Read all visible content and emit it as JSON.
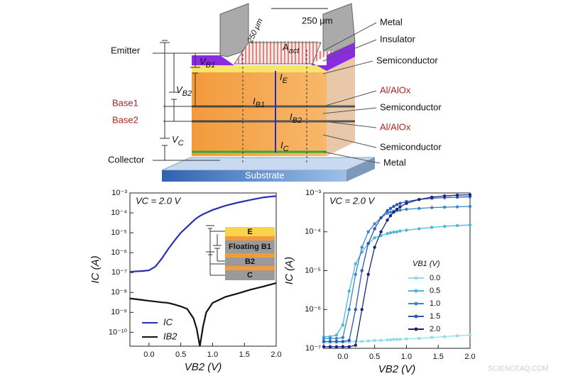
{
  "diagram": {
    "dimensions": [
      "250 μm",
      "250 μm"
    ],
    "active_area": {
      "main": "A",
      "sub": "act"
    },
    "terminals": [
      "Emitter",
      "Base1",
      "Base2",
      "Collector"
    ],
    "voltages": [
      {
        "main": "V",
        "sub": "B1"
      },
      {
        "main": "V",
        "sub": "B2"
      },
      {
        "main": "V",
        "sub": "C"
      }
    ],
    "currents": [
      {
        "main": "I",
        "sub": "E"
      },
      {
        "main": "I",
        "sub": "B1"
      },
      {
        "main": "I",
        "sub": "B2"
      },
      {
        "main": "I",
        "sub": "C"
      }
    ],
    "layers": [
      "Metal",
      "Insulator",
      "Semiconductor",
      "Al/AlOx",
      "Semiconductor",
      "Al/AlOx",
      "Semiconductor",
      "Metal"
    ],
    "substrate": "Substrate"
  },
  "watermark": "SCIENCEAQ.COM",
  "chart_data": [
    {
      "type": "line",
      "annotation": "VC = 2.0 V",
      "x_label": "VB2 (V)",
      "y_label": "IC (A)",
      "log_y": true,
      "markers": false,
      "inset_labels": [
        "E",
        "Floating B1",
        "B2",
        "C"
      ],
      "x": [
        -0.3,
        -0.2,
        -0.1,
        0,
        0.1,
        0.2,
        0.3,
        0.4,
        0.5,
        0.6,
        0.7,
        0.75,
        0.8,
        0.85,
        0.9,
        1.0,
        1.2,
        1.4,
        1.6,
        1.8,
        2.0
      ],
      "series": [
        {
          "name": "IC",
          "color": "#2a2fb0",
          "values": [
            1.1e-07,
            1.15e-07,
            1.2e-07,
            1.3e-07,
            2e-07,
            5e-07,
            1.5e-06,
            4e-06,
            1e-05,
            2e-05,
            4e-05,
            5.5e-05,
            7e-05,
            8.5e-05,
            0.0001,
            0.00014,
            0.00023,
            0.00033,
            0.00045,
            0.0006,
            0.0007
          ]
        },
        {
          "name": "IB2",
          "color": "#111111",
          "values": [
            5e-09,
            4.6e-09,
            4.2e-09,
            3.8e-09,
            3.5e-09,
            3.2e-09,
            3e-09,
            2.5e-09,
            2e-09,
            1.5e-09,
            5e-10,
            1.5e-10,
            2e-11,
            2e-10,
            1e-09,
            3e-09,
            6e-09,
            9e-09,
            1.4e-08,
            2e-08,
            3e-08
          ]
        }
      ],
      "xlim": [
        -0.3,
        2.0
      ],
      "ylim": [
        2e-11,
        0.001
      ],
      "xticks": [
        {
          "value": 0,
          "label": "0.0"
        },
        0.5,
        {
          "value": 1,
          "label": "1.0"
        },
        1.5,
        {
          "value": 2,
          "label": "2.0"
        }
      ],
      "yticks": [
        {
          "value": 1e-10,
          "label": "10⁻¹⁰"
        },
        {
          "value": 1e-09,
          "label": "10⁻⁹"
        },
        {
          "value": 1e-08,
          "label": "10⁻⁸"
        },
        {
          "value": 1e-07,
          "label": "10⁻⁷"
        },
        {
          "value": 1e-06,
          "label": "10⁻⁶"
        },
        {
          "value": 1e-05,
          "label": "10⁻⁵"
        },
        {
          "value": 0.0001,
          "label": "10⁻⁴"
        },
        {
          "value": 0.001,
          "label": "10⁻³"
        }
      ]
    },
    {
      "type": "line",
      "annotation": "VC = 2.0 V",
      "x_label": "VB2 (V)",
      "y_label": "IC (A)",
      "log_y": true,
      "markers": true,
      "legend_title": "VB1 (V)",
      "x": [
        -0.3,
        -0.2,
        -0.1,
        0,
        0.1,
        0.2,
        0.3,
        0.4,
        0.5,
        0.6,
        0.7,
        0.75,
        0.8,
        0.85,
        0.9,
        1.0,
        1.2,
        1.4,
        1.6,
        1.8,
        2.0
      ],
      "series": [
        {
          "name": "0.0",
          "color": "#8fdcea",
          "values": [
            1.4e-07,
            1.4e-07,
            1.4e-07,
            1.45e-07,
            1.45e-07,
            1.5e-07,
            1.5e-07,
            1.55e-07,
            1.6e-07,
            1.6e-07,
            1.65e-07,
            1.65e-07,
            1.7e-07,
            1.7e-07,
            1.7e-07,
            1.75e-07,
            1.8e-07,
            1.9e-07,
            2e-07,
            2.1e-07,
            2.2e-07
          ]
        },
        {
          "name": "0.5",
          "color": "#4bb8d8",
          "values": [
            2e-07,
            2e-07,
            2.2e-07,
            4e-07,
            3e-06,
            1.5e-05,
            3e-05,
            5e-05,
            7e-05,
            8e-05,
            9e-05,
            9.4e-05,
            9.8e-05,
            0.0001,
            0.000105,
            0.00011,
            0.00012,
            0.00013,
            0.000138,
            0.000145,
            0.00015
          ]
        },
        {
          "name": "1.0",
          "color": "#3a86cc",
          "values": [
            1.8e-07,
            1.8e-07,
            1.8e-07,
            1.9e-07,
            1e-06,
            8e-06,
            4e-05,
            0.0001,
            0.00016,
            0.00023,
            0.0003,
            0.00032,
            0.00034,
            0.00035,
            0.00036,
            0.00038,
            0.0004,
            0.00042,
            0.00043,
            0.00044,
            0.00045
          ]
        },
        {
          "name": "1.5",
          "color": "#2a55bb",
          "values": [
            1.5e-07,
            1.5e-07,
            1.5e-07,
            1.5e-07,
            1.6e-07,
            1e-06,
            1e-05,
            5e-05,
            0.00012,
            0.00023,
            0.00035,
            0.0004,
            0.00045,
            0.0005,
            0.00054,
            0.0006,
            0.00068,
            0.00073,
            0.00076,
            0.00078,
            0.0008
          ]
        },
        {
          "name": "2.0",
          "color": "#1a237e",
          "values": [
            1.1e-07,
            1.1e-07,
            1.1e-07,
            1.1e-07,
            1.1e-07,
            1.2e-07,
            1e-06,
            8e-06,
            4e-05,
            0.0001,
            0.0002,
            0.00026,
            0.00032,
            0.00038,
            0.00044,
            0.00054,
            0.00068,
            0.00078,
            0.00084,
            0.00088,
            0.0009
          ]
        }
      ],
      "xlim": [
        -0.3,
        2.0
      ],
      "ylim": [
        1e-07,
        0.001
      ],
      "xticks": [
        {
          "value": 0,
          "label": "0.0"
        },
        0.5,
        {
          "value": 1,
          "label": "1.0"
        },
        1.5,
        {
          "value": 2,
          "label": "2.0"
        }
      ],
      "yticks": [
        {
          "value": 1e-07,
          "label": "10⁻⁷"
        },
        {
          "value": 1e-06,
          "label": "10⁻⁶"
        },
        {
          "value": 1e-05,
          "label": "10⁻⁵"
        },
        {
          "value": 0.0001,
          "label": "10⁻⁴"
        },
        {
          "value": 0.001,
          "label": "10⁻³"
        }
      ]
    }
  ]
}
